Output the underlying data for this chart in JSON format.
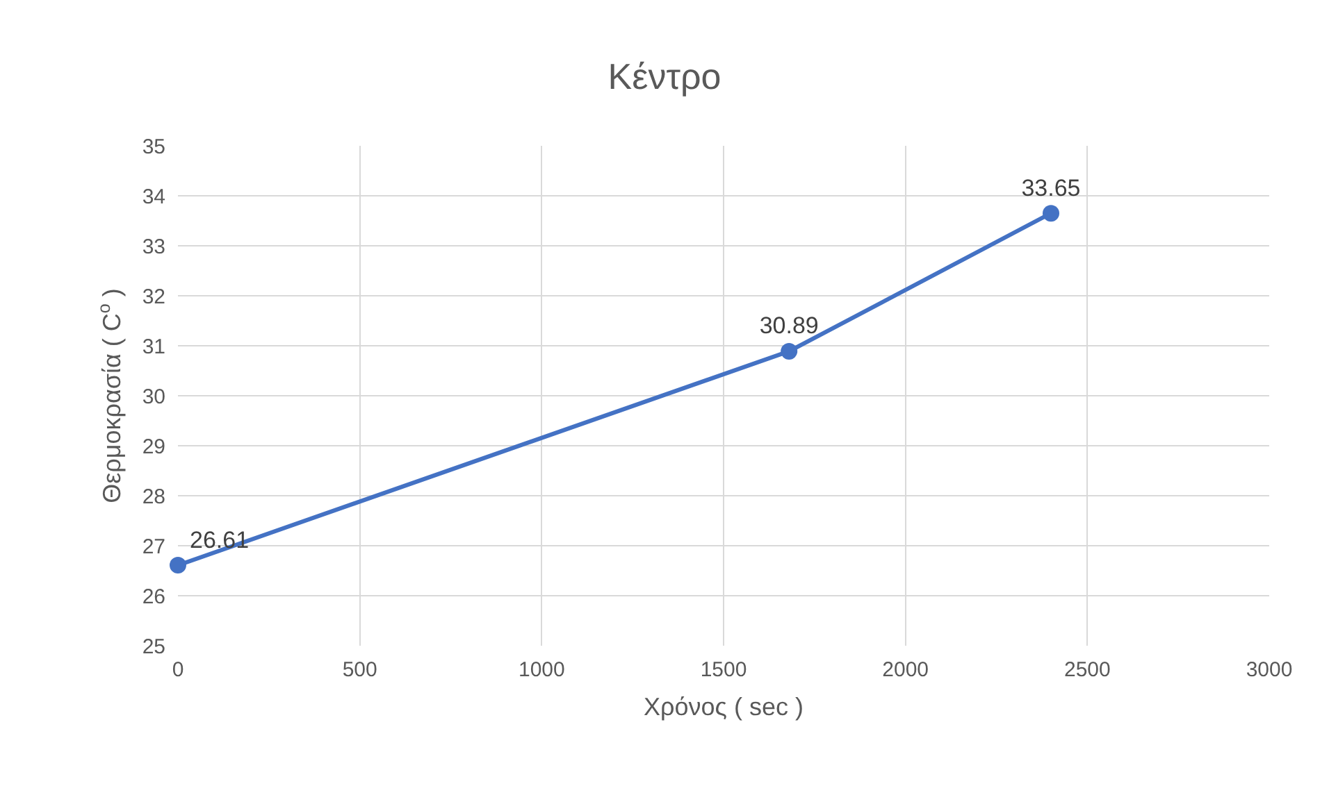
{
  "chart_data": {
    "type": "line",
    "title": "Κέντρο",
    "xlabel": "Χρόνος ( sec )",
    "ylabel": "Θερμοκρασία ( C$^{o}$ )",
    "x": [
      0,
      1680,
      2400
    ],
    "series": [
      {
        "color": "#4472c4",
        "values": [
          26.61,
          30.89,
          33.65
        ]
      }
    ],
    "xlim": [
      0,
      3000
    ],
    "xticks": [
      0,
      500,
      1000,
      1500,
      2000,
      2500,
      3000
    ],
    "ylim": [
      25,
      35
    ],
    "yticks": [
      25,
      26,
      27,
      28,
      29,
      30,
      31,
      32,
      33,
      34,
      35
    ],
    "grid": true,
    "legend": false,
    "marker": "circle",
    "line_style": "solid",
    "data_labels": true
  }
}
